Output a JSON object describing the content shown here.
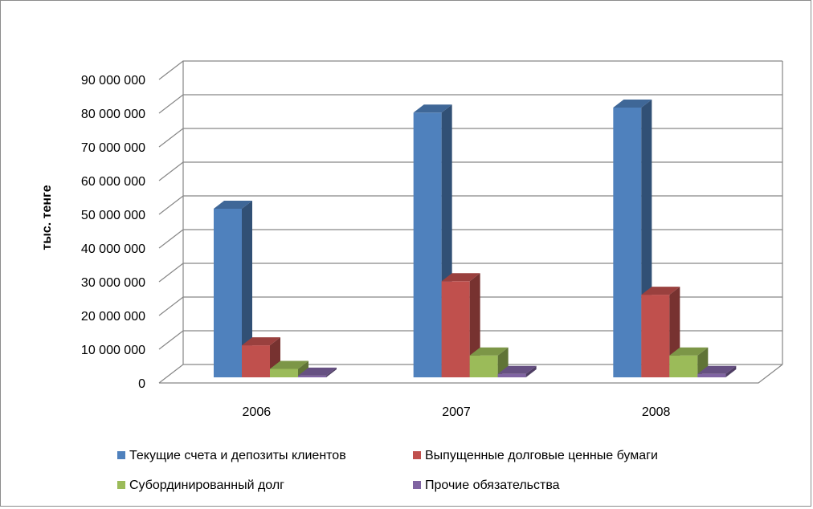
{
  "chart_data": {
    "type": "bar",
    "style": "3d-clustered-column",
    "categories": [
      "2006",
      "2007",
      "2008"
    ],
    "series": [
      {
        "name": "Текущие счета и депозиты клиентов",
        "values": [
          50000000,
          78500000,
          80000000
        ],
        "color": "#4f81bd"
      },
      {
        "name": "Выпущенные долговые ценные бумаги",
        "values": [
          9500000,
          28500000,
          24500000
        ],
        "color": "#c0504d"
      },
      {
        "name": "Субординированный долг",
        "values": [
          2500000,
          6500000,
          6500000
        ],
        "color": "#9bbb59"
      },
      {
        "name": "Прочие обязательства",
        "values": [
          500000,
          1000000,
          1000000
        ],
        "color": "#8064a2"
      }
    ],
    "ylabel": "тыс. тенге",
    "xlabel": "",
    "title": "",
    "ylim": [
      0,
      90000000
    ],
    "yticks": [
      0,
      10000000,
      20000000,
      30000000,
      40000000,
      50000000,
      60000000,
      70000000,
      80000000,
      90000000
    ],
    "ytick_labels": [
      "0",
      "10 000 000",
      "20 000 000",
      "30 000 000",
      "40 000 000",
      "50 000 000",
      "60 000 000",
      "70 000 000",
      "80 000 000",
      "90 000 000"
    ],
    "grid": true,
    "legend_position": "bottom"
  }
}
